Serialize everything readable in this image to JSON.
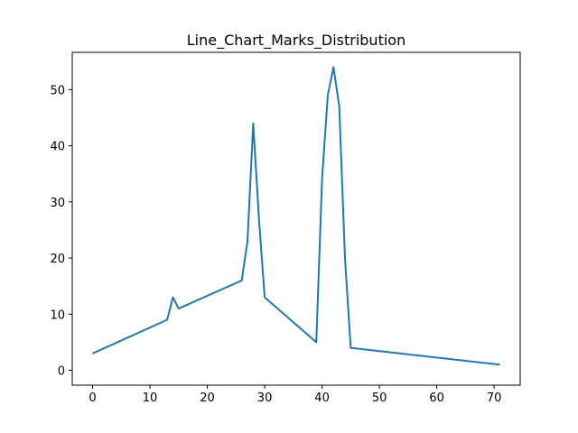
{
  "chart_data": {
    "type": "line",
    "title": "Line_Chart_Marks_Distribution",
    "xlabel": "",
    "ylabel": "",
    "xlim": [
      -3.55,
      74.55
    ],
    "ylim": [
      -2.65,
      56.65
    ],
    "xticks": [
      0,
      10,
      20,
      30,
      40,
      50,
      60,
      70
    ],
    "yticks": [
      0,
      10,
      20,
      30,
      40,
      50
    ],
    "grid": false,
    "line_color": "#1f77b4",
    "series": [
      {
        "x": [
          0,
          13,
          14,
          15,
          26,
          27,
          28,
          29,
          30,
          39,
          40,
          41,
          42,
          43,
          44,
          45,
          71
        ],
        "y": [
          3,
          9,
          13,
          11,
          16,
          23,
          44,
          27,
          13,
          5,
          34,
          49,
          54,
          47,
          20,
          4,
          1
        ]
      }
    ]
  }
}
